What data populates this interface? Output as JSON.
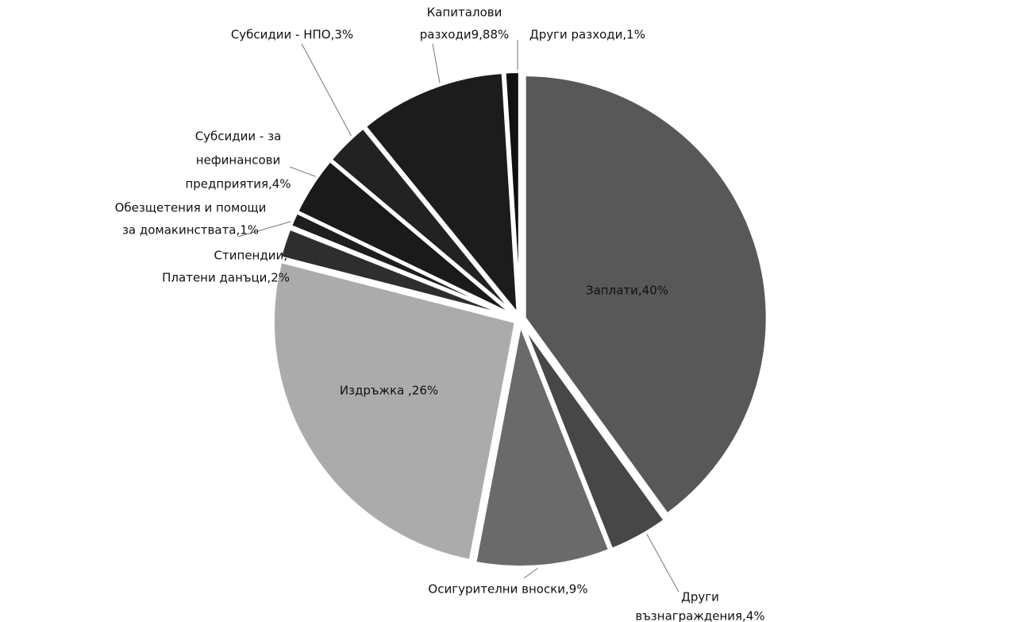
{
  "chart_data": {
    "type": "pie",
    "categories": [
      "Заплати",
      "Други възнаграждения",
      "Осигурителни вноски",
      "Издръжка",
      "Платени данъци",
      "Стипендии",
      "Обезщетения и помощи за домакинствата",
      "Субсидии - за нефинансови предприятия",
      "Субсидии - НПО",
      "Капиталови разходи",
      "Други разходи"
    ],
    "values": [
      40,
      4,
      9,
      26,
      2,
      0.12,
      1,
      4,
      3,
      9.88,
      1
    ],
    "value_labels": [
      [
        "Заплати,40%"
      ],
      [
        "Други",
        "възнаграждения,4%"
      ],
      [
        "Осигурителни вноски,9%"
      ],
      [
        "Издръжка ,26%"
      ],
      [
        "Платени данъци,2%"
      ],
      [
        "Стипендии,"
      ],
      [
        "Обезщетения и помощи",
        "за домакинствата,1%"
      ],
      [
        "Субсидии - за",
        "нефинансови",
        "предприятия,4%"
      ],
      [
        "Субсидии - НПО,3%"
      ],
      [
        "Капиталови",
        "разходи9,88%"
      ],
      [
        "Други разходи,1%"
      ]
    ],
    "colors": [
      "#585858",
      "#474747",
      "#6a6a6a",
      "#ababab",
      "#2e2e2e",
      "#f4f4f4",
      "#1e1e1e",
      "#1a1a1a",
      "#222222",
      "#1c1c1c",
      "#111111"
    ]
  }
}
